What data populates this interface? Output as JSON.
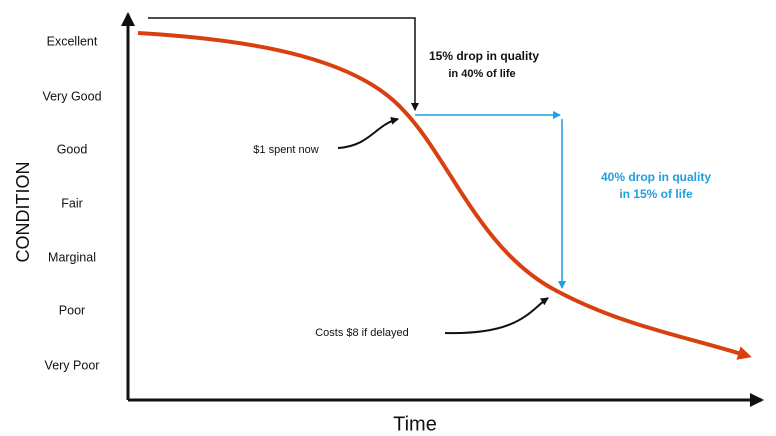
{
  "y_axis": {
    "title": "CONDITION",
    "levels": [
      "Excellent",
      "Very Good",
      "Good",
      "Fair",
      "Marginal",
      "Poor",
      "Very Poor"
    ]
  },
  "x_axis": {
    "title": "Time"
  },
  "annotations": {
    "first_drop": [
      "15% drop in quality",
      "in 40% of  life"
    ],
    "second_drop": [
      "40% drop in quality",
      "in 15% of life"
    ],
    "early": "$1 spent now",
    "late": "Costs $8 if delayed"
  }
}
